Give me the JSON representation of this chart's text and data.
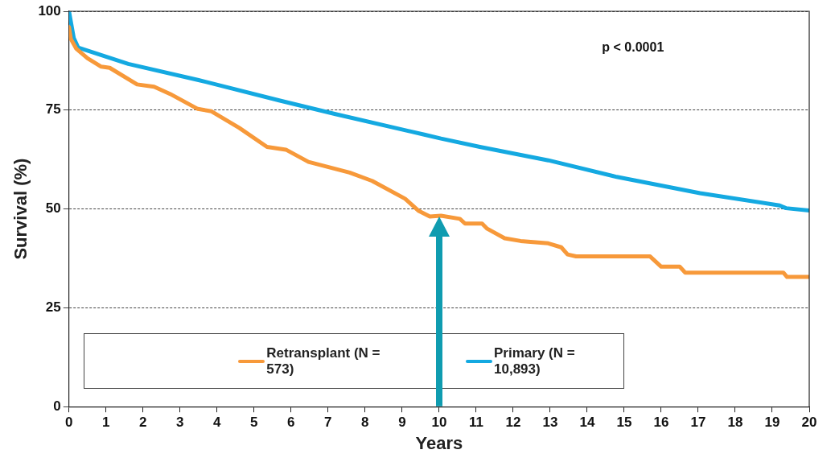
{
  "chart_data": {
    "type": "line",
    "xlabel": "Years",
    "ylabel": "Survival (%)",
    "xlim": [
      0,
      20
    ],
    "xticks": [
      0,
      1,
      2,
      3,
      4,
      5,
      6,
      7,
      8,
      9,
      10,
      11,
      12,
      13,
      14,
      15,
      16,
      17,
      18,
      19,
      20
    ],
    "ylim": [
      0,
      100
    ],
    "yticks": [
      0,
      25,
      50,
      75,
      100
    ],
    "grid": "y",
    "legend": "bottom left",
    "marker": "none",
    "line_style": "solid",
    "annotations": [
      "p < 0.0001"
    ],
    "series": [
      {
        "name": "Retransplant (N = 573)",
        "color": "#f7993a",
        "x": [
          0,
          0.05,
          0.2,
          0.5,
          0.87,
          1.1,
          1.84,
          2.3,
          2.73,
          3.48,
          3.85,
          4.6,
          5.35,
          5.86,
          6.47,
          7.58,
          8.19,
          9.08,
          9.45,
          9.75,
          10.05,
          10.56,
          10.7,
          11.16,
          11.3,
          11.77,
          12.2,
          12.95,
          13.3,
          13.47,
          13.7,
          15.7,
          16.0,
          16.5,
          16.65,
          19.3,
          19.4,
          20
        ],
        "values": [
          96,
          93,
          90.5,
          88.1,
          86,
          85.7,
          81.5,
          80.9,
          79.1,
          75.3,
          74.7,
          70.5,
          65.7,
          65,
          61.9,
          59.2,
          57.1,
          52.6,
          49.5,
          48.1,
          48.3,
          47.5,
          46.3,
          46.3,
          45,
          42.6,
          41.9,
          41.3,
          40.3,
          38.5,
          38,
          38,
          35.4,
          35.4,
          33.9,
          33.9,
          32.8,
          32.8
        ]
      },
      {
        "name": "Primary (N = 10,893)",
        "color": "#14a9e1",
        "x": [
          0,
          0.13,
          0.25,
          1,
          1.6,
          3.5,
          5.7,
          7.2,
          9.6,
          10.05,
          11.1,
          12.95,
          14.8,
          17.05,
          19.2,
          19.37,
          20
        ],
        "values": [
          100,
          93.2,
          90.8,
          88.5,
          86.7,
          82.6,
          77.4,
          74,
          68.8,
          67.8,
          65.7,
          62.3,
          58.1,
          54,
          50.9,
          50.2,
          49.6
        ]
      }
    ]
  }
}
